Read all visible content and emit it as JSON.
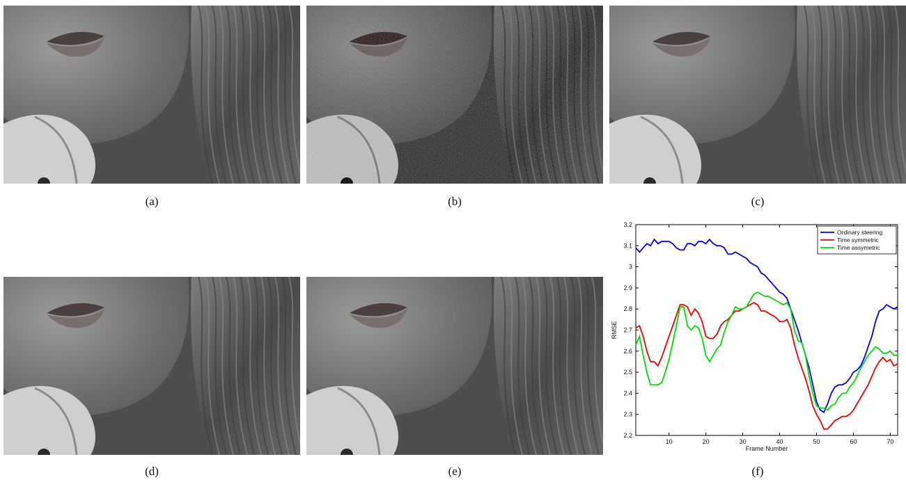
{
  "figure": {
    "captions": {
      "a": "(a)",
      "b": "(b)",
      "c": "(c)",
      "d": "(d)",
      "e": "(e)",
      "f": "(f)"
    },
    "panels": [
      {
        "id": "a",
        "content": "grayscale face crop, original frame"
      },
      {
        "id": "b",
        "content": "grayscale face crop, noisy frame"
      },
      {
        "id": "c",
        "content": "grayscale face crop, denoised"
      },
      {
        "id": "d",
        "content": "grayscale face crop, denoised"
      },
      {
        "id": "e",
        "content": "grayscale face crop, denoised"
      }
    ]
  },
  "chart_data": {
    "type": "line",
    "title": "",
    "xlabel": "Frame Number",
    "ylabel": "RMSE",
    "xlim": [
      1,
      72
    ],
    "ylim": [
      2.2,
      3.2
    ],
    "xticks": [
      10,
      20,
      30,
      40,
      50,
      60,
      70
    ],
    "yticks": [
      2.2,
      2.3,
      2.4,
      2.5,
      2.6,
      2.7,
      2.8,
      2.9,
      3,
      3.1,
      3.2
    ],
    "ytick_labels": [
      "2.2",
      "2.3",
      "2.4",
      "2.5",
      "2.6",
      "2.7",
      "2.8",
      "2.9",
      "3",
      "3.1",
      "3.2"
    ],
    "grid": false,
    "legend": "top-right",
    "x": [
      1,
      2,
      3,
      4,
      5,
      6,
      7,
      8,
      9,
      10,
      11,
      12,
      13,
      14,
      15,
      16,
      17,
      18,
      19,
      20,
      21,
      22,
      23,
      24,
      25,
      26,
      27,
      28,
      29,
      30,
      31,
      32,
      33,
      34,
      35,
      36,
      37,
      38,
      39,
      40,
      41,
      42,
      43,
      44,
      45,
      46,
      47,
      48,
      49,
      50,
      51,
      52,
      53,
      54,
      55,
      56,
      57,
      58,
      59,
      60,
      61,
      62,
      63,
      64,
      65,
      66,
      67,
      68,
      69,
      70,
      71,
      72
    ],
    "series": [
      {
        "name": "Ordinary steering",
        "color": "#0000ee",
        "values": [
          3.09,
          3.07,
          3.09,
          3.11,
          3.1,
          3.13,
          3.11,
          3.12,
          3.12,
          3.12,
          3.11,
          3.09,
          3.08,
          3.08,
          3.11,
          3.11,
          3.1,
          3.12,
          3.12,
          3.11,
          3.13,
          3.11,
          3.1,
          3.1,
          3.09,
          3.06,
          3.06,
          3.07,
          3.06,
          3.05,
          3.04,
          3.02,
          3.01,
          3.0,
          2.97,
          2.96,
          2.94,
          2.92,
          2.9,
          2.88,
          2.87,
          2.85,
          2.8,
          2.75,
          2.7,
          2.64,
          2.58,
          2.52,
          2.44,
          2.36,
          2.32,
          2.31,
          2.35,
          2.4,
          2.43,
          2.44,
          2.44,
          2.45,
          2.47,
          2.5,
          2.51,
          2.53,
          2.57,
          2.62,
          2.67,
          2.74,
          2.79,
          2.8,
          2.82,
          2.81,
          2.8,
          2.81
        ]
      },
      {
        "name": "Time symmetric",
        "color": "#ee0000",
        "values": [
          2.71,
          2.72,
          2.67,
          2.6,
          2.55,
          2.55,
          2.53,
          2.57,
          2.62,
          2.67,
          2.72,
          2.77,
          2.82,
          2.82,
          2.81,
          2.77,
          2.8,
          2.78,
          2.74,
          2.67,
          2.66,
          2.66,
          2.68,
          2.72,
          2.74,
          2.75,
          2.77,
          2.79,
          2.79,
          2.8,
          2.81,
          2.82,
          2.83,
          2.82,
          2.79,
          2.79,
          2.78,
          2.77,
          2.76,
          2.74,
          2.74,
          2.75,
          2.71,
          2.63,
          2.57,
          2.52,
          2.47,
          2.41,
          2.34,
          2.3,
          2.27,
          2.23,
          2.23,
          2.25,
          2.27,
          2.28,
          2.29,
          2.29,
          2.3,
          2.32,
          2.35,
          2.38,
          2.41,
          2.44,
          2.48,
          2.52,
          2.55,
          2.57,
          2.55,
          2.56,
          2.53,
          2.54
        ]
      },
      {
        "name": "Time assymetric",
        "color": "#00dd00",
        "values": [
          2.63,
          2.67,
          2.58,
          2.5,
          2.44,
          2.44,
          2.44,
          2.45,
          2.5,
          2.56,
          2.64,
          2.72,
          2.81,
          2.81,
          2.72,
          2.7,
          2.72,
          2.71,
          2.66,
          2.58,
          2.55,
          2.58,
          2.61,
          2.63,
          2.69,
          2.74,
          2.77,
          2.81,
          2.8,
          2.8,
          2.81,
          2.84,
          2.87,
          2.88,
          2.87,
          2.86,
          2.86,
          2.85,
          2.84,
          2.83,
          2.82,
          2.83,
          2.8,
          2.7,
          2.65,
          2.64,
          2.58,
          2.48,
          2.4,
          2.34,
          2.33,
          2.33,
          2.32,
          2.34,
          2.35,
          2.38,
          2.4,
          2.4,
          2.43,
          2.45,
          2.48,
          2.52,
          2.55,
          2.58,
          2.6,
          2.62,
          2.61,
          2.59,
          2.59,
          2.6,
          2.58,
          2.58
        ]
      }
    ]
  }
}
